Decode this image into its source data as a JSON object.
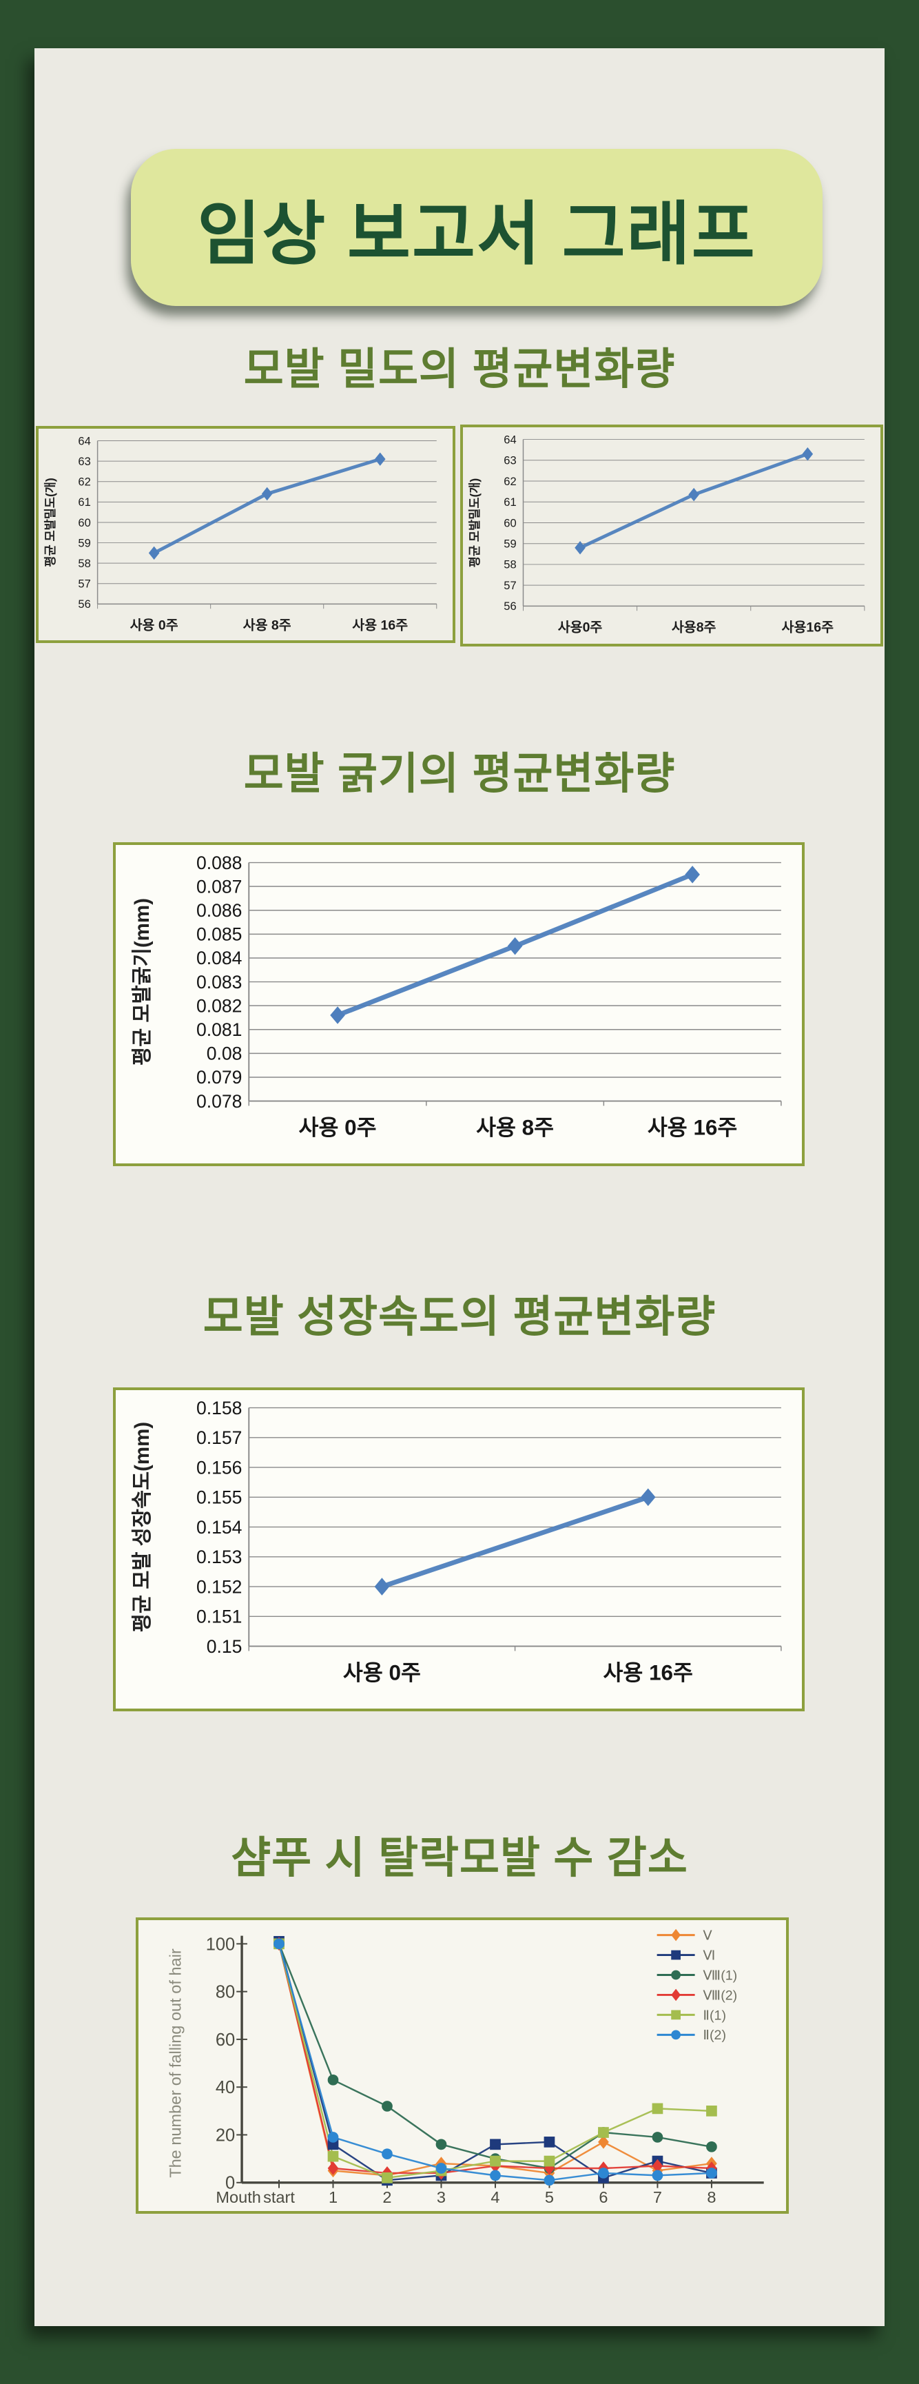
{
  "page": {
    "title": "임상 보고서 그래프"
  },
  "sections": [
    {
      "heading": "모발 밀도의 평균변화량"
    },
    {
      "heading": "모발 굵기의 평균변화량"
    },
    {
      "heading": "모발 성장속도의 평균변화량"
    },
    {
      "heading": "샴푸 시 탈락모발 수 감소"
    }
  ],
  "colors": {
    "frame_green": "#2b4f2e",
    "panel_bg": "#ebeae3",
    "pill_bg": "#dfe79d",
    "title_text": "#1d5231",
    "heading_olive": "#5e7d31",
    "card_border": "#8da03e",
    "line_blue": "#4e7fbd"
  },
  "chart_data": [
    {
      "type": "line",
      "title": "",
      "ylabel": "평균 모발밀도(개)",
      "xlabel": "",
      "categories": [
        "사용 0주",
        "사용 8주",
        "사용 16주"
      ],
      "values": [
        58.5,
        61.4,
        63.1
      ],
      "color": "#4e7fbd",
      "ylim": [
        56,
        64
      ],
      "ytick_step": 1,
      "grid": "on",
      "legend": "none"
    },
    {
      "type": "line",
      "title": "",
      "ylabel": "평균 모발밀도(개)",
      "xlabel": "",
      "categories": [
        "사용0주",
        "사용8주",
        "사용16주"
      ],
      "values": [
        58.8,
        61.35,
        63.3
      ],
      "color": "#4e7fbd",
      "ylim": [
        56,
        64
      ],
      "ytick_step": 1,
      "grid": "on",
      "legend": "none"
    },
    {
      "type": "line",
      "title": "",
      "ylabel": "평균 모발굵기(mm)",
      "xlabel": "",
      "categories": [
        "사용 0주",
        "사용 8주",
        "사용 16주"
      ],
      "values": [
        0.0816,
        0.0845,
        0.0875
      ],
      "color": "#4e7fbd",
      "ylim": [
        0.078,
        0.088
      ],
      "ytick_step": 0.001,
      "grid": "on",
      "legend": "none"
    },
    {
      "type": "line",
      "title": "",
      "ylabel": "평균 모발 성장속도(mm)",
      "xlabel": "",
      "categories": [
        "사용 0주",
        "사용 16주"
      ],
      "values": [
        0.152,
        0.155
      ],
      "color": "#4e7fbd",
      "ylim": [
        0.15,
        0.158
      ],
      "ytick_step": 0.001,
      "grid": "on",
      "legend": "none"
    },
    {
      "type": "line",
      "title": "",
      "ylabel": "The number of falling out of hair",
      "xlabel": "Mouth",
      "categories": [
        "start",
        "1",
        "2",
        "3",
        "4",
        "5",
        "6",
        "7",
        "8"
      ],
      "ylim": [
        0,
        100
      ],
      "yticks": [
        0,
        20,
        40,
        60,
        80,
        100
      ],
      "grid": "off",
      "legend": "top-right",
      "series": [
        {
          "name": "Ⅴ",
          "marker": "diamond",
          "color": "#ee8733",
          "values": [
            100,
            5,
            3,
            8,
            7,
            4,
            17,
            5,
            8
          ]
        },
        {
          "name": "Ⅵ",
          "marker": "square",
          "color": "#1e3a7c",
          "values": [
            101,
            16,
            1,
            3,
            16,
            17,
            2,
            9,
            4
          ]
        },
        {
          "name": "Ⅷ(1)",
          "marker": "circle",
          "color": "#2f6d53",
          "values": [
            100,
            43,
            32,
            16,
            10,
            6,
            21,
            19,
            15
          ]
        },
        {
          "name": "Ⅷ(2)",
          "marker": "diamond",
          "color": "#e23b34",
          "values": [
            100,
            6,
            4,
            4,
            7,
            6,
            6,
            7,
            6
          ]
        },
        {
          "name": "Ⅱ(1)",
          "marker": "square",
          "color": "#a4bd4e",
          "values": [
            100,
            11,
            2,
            5,
            9,
            9,
            21,
            31,
            30
          ]
        },
        {
          "name": "Ⅱ(2)",
          "marker": "circle",
          "color": "#2d87d2",
          "values": [
            100,
            19,
            12,
            6,
            3,
            1,
            4,
            3,
            4
          ]
        }
      ]
    }
  ]
}
